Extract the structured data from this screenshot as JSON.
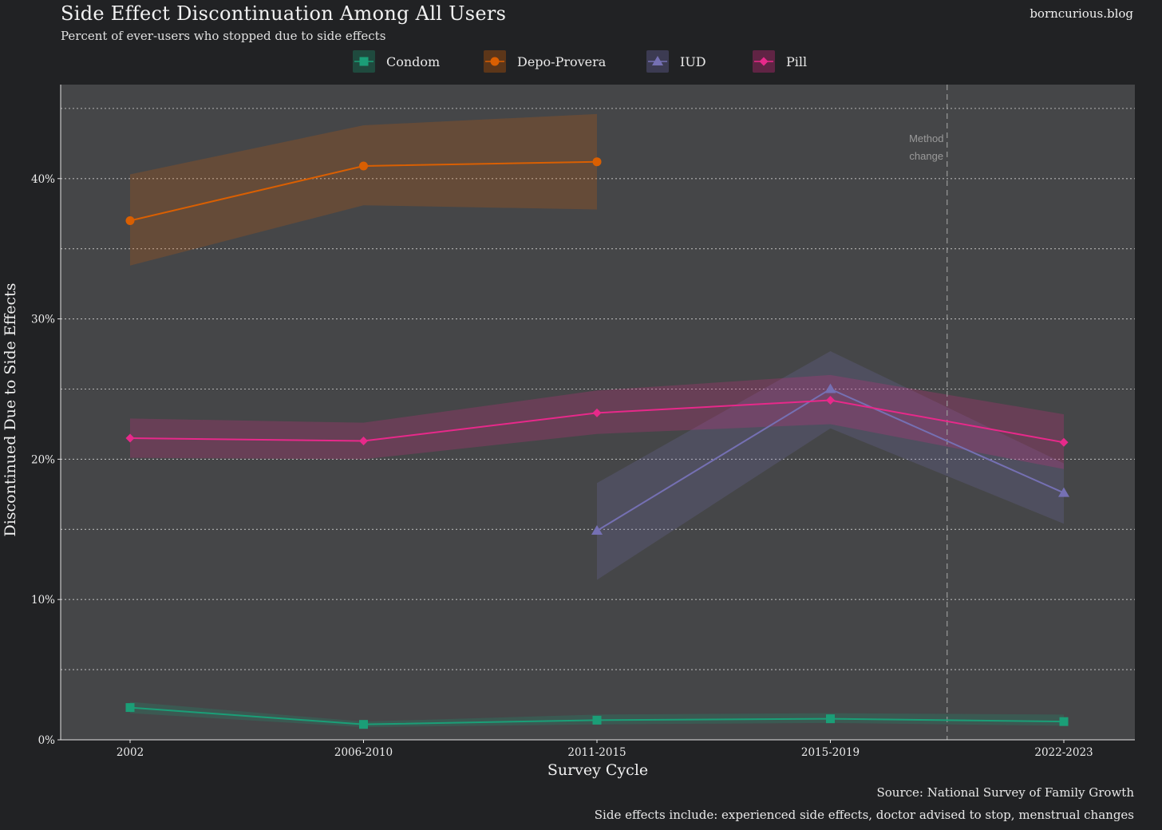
{
  "header": {
    "title": "Side Effect Discontinuation Among All Users",
    "subtitle": "Percent of ever-users who stopped due to side effects",
    "brand": "borncurious.blog"
  },
  "footer": {
    "source": "Source: National Survey of Family Growth",
    "note": "Side effects include: experienced side effects, doctor advised to stop, menstrual changes"
  },
  "legend": [
    {
      "label": "Condom",
      "color": "#1b9e77",
      "marker": "square"
    },
    {
      "label": "Depo-Provera",
      "color": "#d95f02",
      "marker": "circle"
    },
    {
      "label": "IUD",
      "color": "#7570b3",
      "marker": "triangle"
    },
    {
      "label": "Pill",
      "color": "#e7298a",
      "marker": "diamond"
    }
  ],
  "chart_data": {
    "type": "line",
    "title": "Side Effect Discontinuation Among All Users",
    "xlabel": "Survey Cycle",
    "ylabel": "Discontinued Due to Side Effects",
    "categories": [
      "2002",
      "2006-2010",
      "2011-2015",
      "2015-2019",
      "2022-2023"
    ],
    "ylim": [
      0,
      46.7
    ],
    "yticks": [
      0,
      10,
      20,
      30,
      40
    ],
    "yticks_minor": [
      5,
      15,
      25,
      35,
      45
    ],
    "ytick_labels": [
      "0%",
      "10%",
      "20%",
      "30%",
      "40%"
    ],
    "grid": true,
    "annotation": {
      "x_between": [
        "2015-2019",
        "2022-2023"
      ],
      "x_pos": 3.5,
      "lines": [
        "Method",
        "change"
      ]
    },
    "series": [
      {
        "name": "Condom",
        "color": "#1b9e77",
        "marker": "square",
        "values": [
          2.3,
          1.1,
          1.4,
          1.5,
          1.3
        ],
        "lower": [
          1.9,
          0.9,
          1.1,
          1.2,
          1.0
        ],
        "upper": [
          2.7,
          1.3,
          1.8,
          1.9,
          1.8
        ]
      },
      {
        "name": "Depo-Provera",
        "color": "#d95f02",
        "marker": "circle",
        "values": [
          37.0,
          40.9,
          41.2,
          null,
          null
        ],
        "lower": [
          33.8,
          38.1,
          37.8,
          null,
          null
        ],
        "upper": [
          40.3,
          43.8,
          44.6,
          null,
          null
        ]
      },
      {
        "name": "IUD",
        "color": "#7570b3",
        "marker": "triangle",
        "values": [
          null,
          null,
          14.9,
          25.0,
          17.6
        ],
        "lower": [
          null,
          null,
          11.4,
          22.2,
          15.4
        ],
        "upper": [
          null,
          null,
          18.3,
          27.7,
          19.7
        ]
      },
      {
        "name": "Pill",
        "color": "#e7298a",
        "marker": "diamond",
        "values": [
          21.5,
          21.3,
          23.3,
          24.2,
          21.2
        ],
        "lower": [
          20.1,
          20.0,
          21.8,
          22.5,
          19.3
        ],
        "upper": [
          22.9,
          22.6,
          24.9,
          26.0,
          23.2
        ]
      }
    ]
  }
}
